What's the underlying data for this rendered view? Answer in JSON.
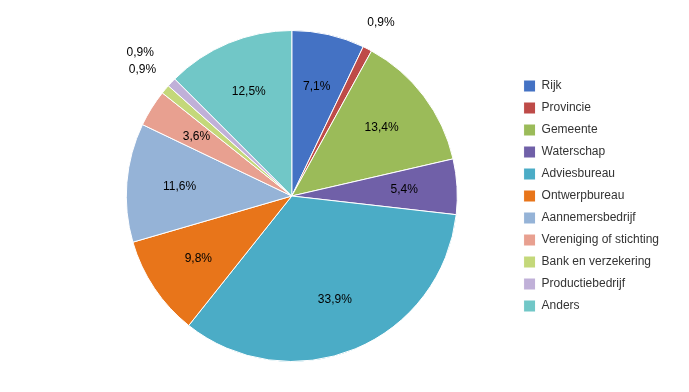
{
  "chart_data": {
    "type": "pie",
    "categories": [
      "Rijk",
      "Provincie",
      "Gemeente",
      "Waterschap",
      "Adviesbureau",
      "Ontwerpbureau",
      "Aannemersbedrijf",
      "Vereniging of stichting",
      "Bank en verzekering",
      "Productiebedrijf",
      "Anders"
    ],
    "values": [
      7.1,
      0.9,
      13.4,
      5.4,
      33.9,
      9.8,
      11.6,
      3.6,
      0.9,
      0.9,
      12.5
    ],
    "value_labels": [
      "7,1%",
      "0,9%",
      "13,4%",
      "5,4%",
      "33,9%",
      "9,8%",
      "11,6%",
      "3,6%",
      "0,9%",
      "0,9%",
      "12,5%"
    ],
    "colors": [
      "#4472C4",
      "#BE4B48",
      "#9BBB59",
      "#7060A8",
      "#4BACC6",
      "#E8751A",
      "#95B3D7",
      "#E8A090",
      "#C4D87A",
      "#C0B0D8",
      "#71C7C7"
    ],
    "data_labels": true,
    "legend": "right"
  }
}
